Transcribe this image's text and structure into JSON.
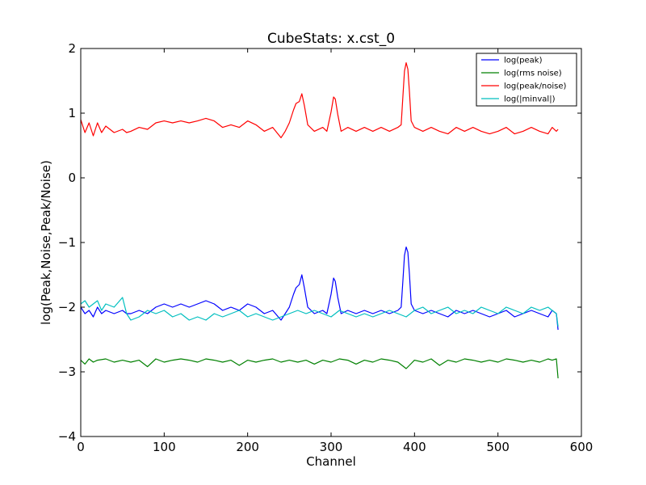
{
  "chart_data": {
    "type": "line",
    "title": "CubeStats: x.cst_0",
    "xlabel": "Channel",
    "ylabel": "log(Peak,Noise,Peak/Noise)",
    "xlim": [
      0,
      600
    ],
    "ylim": [
      -4,
      2
    ],
    "xticks": [
      0,
      100,
      200,
      300,
      400,
      500,
      600
    ],
    "yticks": [
      -4,
      -3,
      -2,
      -1,
      0,
      1,
      2
    ],
    "xtick_labels": [
      "0",
      "100",
      "200",
      "300",
      "400",
      "500",
      "600"
    ],
    "ytick_labels": [
      "−4",
      "−3",
      "−2",
      "−1",
      "0",
      "1",
      "2"
    ],
    "grid": false,
    "legend_position": "top-right",
    "series": [
      {
        "name": "log(peak)",
        "color": "#0000ff",
        "x": [
          0,
          5,
          10,
          15,
          20,
          25,
          30,
          40,
          50,
          55,
          60,
          70,
          80,
          90,
          100,
          110,
          120,
          130,
          140,
          150,
          160,
          170,
          180,
          190,
          200,
          210,
          220,
          230,
          240,
          245,
          250,
          255,
          258,
          262,
          265,
          268,
          272,
          280,
          290,
          295,
          300,
          303,
          305,
          308,
          312,
          320,
          330,
          340,
          350,
          360,
          370,
          380,
          384,
          386,
          388,
          390,
          392,
          394,
          396,
          400,
          410,
          420,
          430,
          440,
          450,
          460,
          470,
          480,
          490,
          500,
          510,
          520,
          530,
          540,
          550,
          560,
          565,
          570,
          572
        ],
        "y": [
          -2.0,
          -2.1,
          -2.05,
          -2.15,
          -2.0,
          -2.1,
          -2.05,
          -2.1,
          -2.05,
          -2.1,
          -2.1,
          -2.05,
          -2.1,
          -2.0,
          -1.95,
          -2.0,
          -1.95,
          -2.0,
          -1.95,
          -1.9,
          -1.95,
          -2.05,
          -2.0,
          -2.05,
          -1.95,
          -2.0,
          -2.1,
          -2.05,
          -2.2,
          -2.1,
          -2.0,
          -1.8,
          -1.7,
          -1.65,
          -1.5,
          -1.7,
          -2.0,
          -2.1,
          -2.05,
          -2.1,
          -1.8,
          -1.55,
          -1.6,
          -1.85,
          -2.1,
          -2.05,
          -2.1,
          -2.05,
          -2.1,
          -2.05,
          -2.1,
          -2.05,
          -2.0,
          -1.6,
          -1.2,
          -1.07,
          -1.15,
          -1.5,
          -1.95,
          -2.05,
          -2.1,
          -2.05,
          -2.1,
          -2.15,
          -2.05,
          -2.1,
          -2.05,
          -2.1,
          -2.15,
          -2.1,
          -2.05,
          -2.15,
          -2.1,
          -2.05,
          -2.1,
          -2.15,
          -2.05,
          -2.1,
          -2.35
        ]
      },
      {
        "name": "log(rms noise)",
        "color": "#008000",
        "x": [
          0,
          5,
          10,
          15,
          20,
          30,
          40,
          50,
          60,
          70,
          80,
          90,
          100,
          110,
          120,
          130,
          140,
          150,
          160,
          170,
          180,
          190,
          200,
          210,
          220,
          230,
          240,
          250,
          260,
          270,
          280,
          290,
          300,
          310,
          320,
          330,
          340,
          350,
          360,
          370,
          380,
          390,
          400,
          410,
          420,
          430,
          440,
          450,
          460,
          470,
          480,
          490,
          500,
          510,
          520,
          530,
          540,
          550,
          560,
          565,
          570,
          572
        ],
        "y": [
          -2.82,
          -2.88,
          -2.8,
          -2.85,
          -2.82,
          -2.8,
          -2.85,
          -2.82,
          -2.85,
          -2.82,
          -2.92,
          -2.8,
          -2.85,
          -2.82,
          -2.8,
          -2.82,
          -2.85,
          -2.8,
          -2.82,
          -2.85,
          -2.82,
          -2.9,
          -2.82,
          -2.85,
          -2.82,
          -2.8,
          -2.85,
          -2.82,
          -2.85,
          -2.82,
          -2.88,
          -2.82,
          -2.85,
          -2.8,
          -2.82,
          -2.88,
          -2.82,
          -2.85,
          -2.8,
          -2.82,
          -2.85,
          -2.95,
          -2.82,
          -2.85,
          -2.8,
          -2.9,
          -2.82,
          -2.85,
          -2.8,
          -2.82,
          -2.85,
          -2.82,
          -2.85,
          -2.8,
          -2.82,
          -2.85,
          -2.82,
          -2.85,
          -2.8,
          -2.82,
          -2.8,
          -3.1
        ]
      },
      {
        "name": "log(peak/noise)",
        "color": "#ff0000",
        "x": [
          0,
          5,
          10,
          15,
          20,
          25,
          30,
          40,
          50,
          55,
          60,
          70,
          80,
          90,
          100,
          110,
          120,
          130,
          140,
          150,
          160,
          170,
          180,
          190,
          200,
          210,
          220,
          230,
          240,
          245,
          250,
          255,
          258,
          262,
          265,
          268,
          272,
          280,
          290,
          295,
          300,
          303,
          305,
          308,
          312,
          320,
          330,
          340,
          350,
          360,
          370,
          380,
          384,
          386,
          388,
          390,
          392,
          394,
          396,
          400,
          410,
          420,
          430,
          440,
          450,
          460,
          470,
          480,
          490,
          500,
          510,
          520,
          530,
          540,
          550,
          560,
          565,
          570,
          572
        ],
        "y": [
          0.9,
          0.7,
          0.85,
          0.65,
          0.85,
          0.7,
          0.8,
          0.7,
          0.75,
          0.7,
          0.72,
          0.78,
          0.75,
          0.85,
          0.88,
          0.85,
          0.88,
          0.85,
          0.88,
          0.92,
          0.88,
          0.78,
          0.82,
          0.78,
          0.88,
          0.82,
          0.72,
          0.78,
          0.62,
          0.72,
          0.85,
          1.05,
          1.15,
          1.18,
          1.3,
          1.12,
          0.82,
          0.72,
          0.78,
          0.72,
          1.02,
          1.25,
          1.22,
          0.98,
          0.72,
          0.78,
          0.72,
          0.78,
          0.72,
          0.78,
          0.72,
          0.78,
          0.82,
          1.25,
          1.65,
          1.78,
          1.68,
          1.32,
          0.88,
          0.78,
          0.72,
          0.78,
          0.72,
          0.68,
          0.78,
          0.72,
          0.78,
          0.72,
          0.68,
          0.72,
          0.78,
          0.68,
          0.72,
          0.78,
          0.72,
          0.68,
          0.78,
          0.72,
          0.75
        ]
      },
      {
        "name": "log(|minval|)",
        "color": "#00bfbf",
        "x": [
          0,
          5,
          10,
          15,
          20,
          25,
          30,
          40,
          50,
          55,
          60,
          70,
          80,
          90,
          100,
          110,
          120,
          130,
          140,
          150,
          160,
          170,
          180,
          190,
          200,
          210,
          220,
          230,
          240,
          250,
          260,
          270,
          280,
          290,
          300,
          310,
          320,
          330,
          340,
          350,
          360,
          370,
          380,
          390,
          400,
          410,
          420,
          430,
          440,
          450,
          460,
          470,
          480,
          490,
          500,
          510,
          520,
          530,
          540,
          550,
          560,
          565,
          570,
          572
        ],
        "y": [
          -1.95,
          -1.9,
          -2.0,
          -1.95,
          -1.9,
          -2.05,
          -1.95,
          -2.0,
          -1.85,
          -2.1,
          -2.2,
          -2.15,
          -2.05,
          -2.1,
          -2.05,
          -2.15,
          -2.1,
          -2.2,
          -2.15,
          -2.2,
          -2.1,
          -2.15,
          -2.1,
          -2.05,
          -2.15,
          -2.1,
          -2.15,
          -2.2,
          -2.15,
          -2.1,
          -2.05,
          -2.1,
          -2.05,
          -2.1,
          -2.15,
          -2.05,
          -2.1,
          -2.15,
          -2.1,
          -2.15,
          -2.1,
          -2.05,
          -2.1,
          -2.15,
          -2.05,
          -2.0,
          -2.1,
          -2.05,
          -2.0,
          -2.1,
          -2.05,
          -2.1,
          -2.0,
          -2.05,
          -2.1,
          -2.0,
          -2.05,
          -2.1,
          -2.0,
          -2.05,
          -2.0,
          -2.05,
          -2.1,
          -2.3
        ]
      }
    ]
  }
}
